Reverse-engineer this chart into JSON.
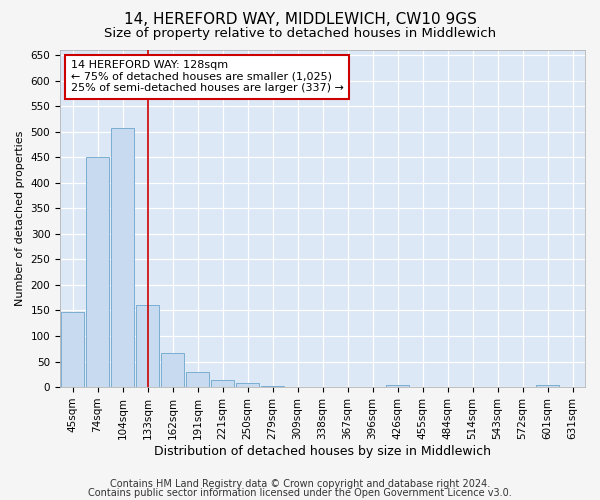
{
  "title1": "14, HEREFORD WAY, MIDDLEWICH, CW10 9GS",
  "title2": "Size of property relative to detached houses in Middlewich",
  "xlabel": "Distribution of detached houses by size in Middlewich",
  "ylabel": "Number of detached properties",
  "categories": [
    "45sqm",
    "74sqm",
    "104sqm",
    "133sqm",
    "162sqm",
    "191sqm",
    "221sqm",
    "250sqm",
    "279sqm",
    "309sqm",
    "338sqm",
    "367sqm",
    "396sqm",
    "426sqm",
    "455sqm",
    "484sqm",
    "514sqm",
    "543sqm",
    "572sqm",
    "601sqm",
    "631sqm"
  ],
  "values": [
    148,
    450,
    508,
    160,
    67,
    30,
    13,
    8,
    2,
    0,
    0,
    0,
    0,
    5,
    0,
    0,
    0,
    0,
    0,
    5,
    0
  ],
  "bar_color": "#c8daf0",
  "bar_edge_color": "#7aaed0",
  "vline_x": 3.0,
  "vline_color": "#cc0000",
  "annotation_line1": "14 HEREFORD WAY: 128sqm",
  "annotation_line2": "← 75% of detached houses are smaller (1,025)",
  "annotation_line3": "25% of semi-detached houses are larger (337) →",
  "annotation_box_facecolor": "#ffffff",
  "annotation_box_edgecolor": "#cc0000",
  "ylim_max": 660,
  "yticks": [
    0,
    50,
    100,
    150,
    200,
    250,
    300,
    350,
    400,
    450,
    500,
    550,
    600,
    650
  ],
  "footer1": "Contains HM Land Registry data © Crown copyright and database right 2024.",
  "footer2": "Contains public sector information licensed under the Open Government Licence v3.0.",
  "plot_bg_color": "#dce8f5",
  "fig_bg_color": "#f5f5f5",
  "grid_color": "#ffffff",
  "title1_fontsize": 11,
  "title2_fontsize": 9.5,
  "xlabel_fontsize": 9,
  "ylabel_fontsize": 8,
  "tick_fontsize": 7.5,
  "annot_fontsize": 8,
  "footer_fontsize": 7
}
